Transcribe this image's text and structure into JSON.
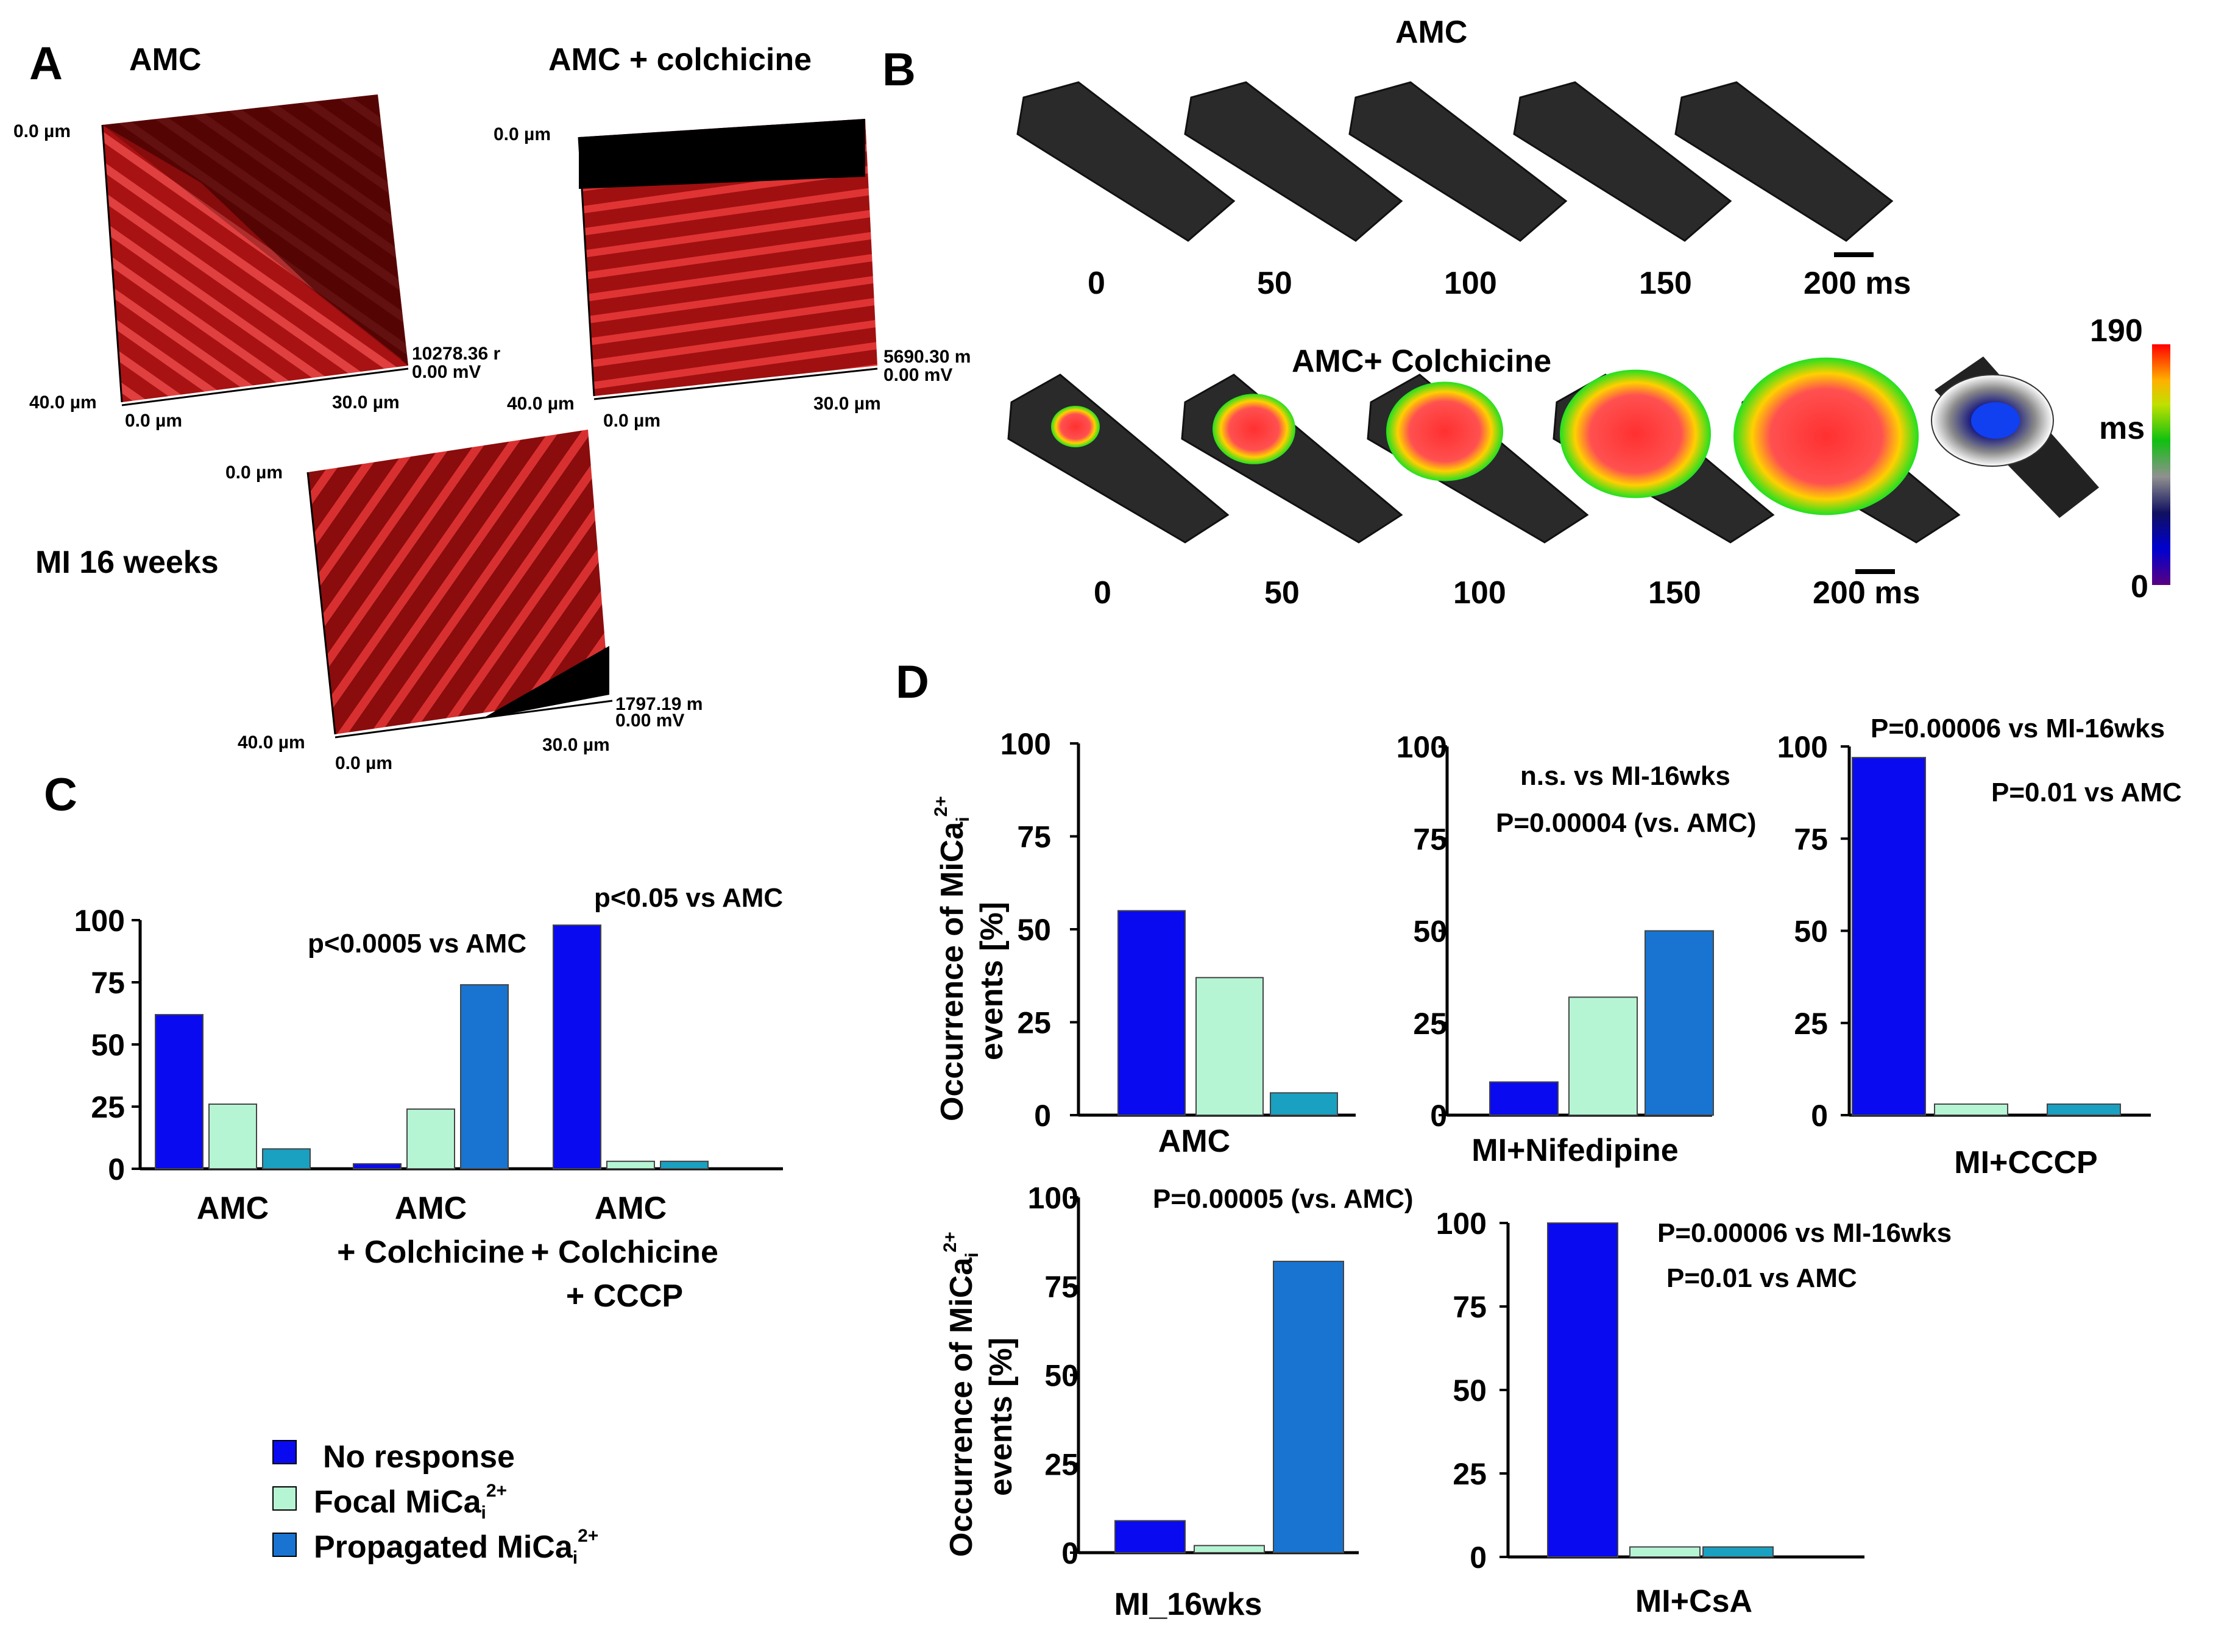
{
  "panel_letters": {
    "a": "A",
    "b": "B",
    "c": "C",
    "d": "D"
  },
  "afm": {
    "amc": {
      "title": "AMC",
      "z_top": "0.0 µm",
      "z_bot": "40.0 µm",
      "x0": "0.0 µm",
      "x30": "30.0 µm",
      "scale": "10278.36 r",
      "zero": "0.00 mV"
    },
    "colch": {
      "title": "AMC + colchicine",
      "z_top": "0.0 µm",
      "z_bot": "40.0 µm",
      "x0": "0.0 µm",
      "x30": "30.0 µm",
      "scale": "5690.30 m",
      "zero": "0.00 mV"
    },
    "mi": {
      "title": "MI 16 weeks",
      "z_top": "0.0 µm",
      "z_bot": "40.0 µm",
      "x0": "0.0 µm",
      "x30": "30.0 µm",
      "scale": "1797.19 m",
      "zero": "0.00 mV"
    }
  },
  "panel_b": {
    "row1_title": "AMC",
    "row2_title": "AMC+ Colchicine",
    "times": [
      "0",
      "50",
      "100",
      "150",
      "200 ms"
    ],
    "colorbar": {
      "max": "190",
      "unit": "ms",
      "min": "0"
    }
  },
  "colors": {
    "no_response": "#0a0af0",
    "focal": "#b6f5d4",
    "propagated": "#1874d0",
    "propagated_alt": "#1aa0c0"
  },
  "legend": {
    "no_response": "No response",
    "focal": "Focal MiCa",
    "propagated": "Propagated MiCa",
    "sub": "i",
    "sup": "2+"
  },
  "y_title": {
    "line1": "Occurrence of MiCa",
    "line2": "events   [%]",
    "sub": "i",
    "sup": "2+"
  },
  "y_ticks": [
    "0",
    "25",
    "50",
    "75",
    "100"
  ],
  "chart_data": [
    {
      "panel": "C",
      "type": "bar",
      "categories": [
        [
          "AMC"
        ],
        [
          "AMC",
          "+ Colchicine"
        ],
        [
          "AMC",
          "+ Colchicine",
          "+ CCCP"
        ]
      ],
      "series": [
        {
          "name": "No response",
          "values": [
            62,
            2,
            98
          ]
        },
        {
          "name": "Focal MiCa",
          "values": [
            26,
            24,
            3
          ]
        },
        {
          "name": "Propagated MiCa",
          "values": [
            8,
            74,
            3
          ]
        }
      ],
      "annotations": [
        "p<0.0005 vs AMC",
        "p<0.05 vs AMC"
      ],
      "ylim": [
        0,
        100
      ]
    },
    {
      "panel": "D",
      "type": "bar",
      "category": "AMC",
      "values": [
        55,
        37,
        6
      ],
      "annotations": [],
      "ylim": [
        0,
        100
      ]
    },
    {
      "panel": "D",
      "type": "bar",
      "category": "MI+Nifedipine",
      "values": [
        9,
        32,
        50
      ],
      "annotations": [
        "n.s. vs MI-16wks",
        "P=0.00004 (vs. AMC)"
      ],
      "ylim": [
        0,
        100
      ]
    },
    {
      "panel": "D",
      "type": "bar",
      "category": "MI+CCCP",
      "values": [
        97,
        3,
        3
      ],
      "annotations": [
        "P=0.00006 vs MI-16wks",
        "P=0.01 vs AMC"
      ],
      "ylim": [
        0,
        100
      ]
    },
    {
      "panel": "D",
      "type": "bar",
      "category": "MI_16wks",
      "values": [
        9,
        2,
        82
      ],
      "annotations": [
        "P=0.00005 (vs. AMC)"
      ],
      "ylim": [
        0,
        100
      ]
    },
    {
      "panel": "D",
      "type": "bar",
      "category": "MI+CsA",
      "values": [
        100,
        3,
        3
      ],
      "annotations": [
        "P=0.00006 vs MI-16wks",
        "P=0.01 vs AMC"
      ],
      "ylim": [
        0,
        100
      ]
    }
  ]
}
